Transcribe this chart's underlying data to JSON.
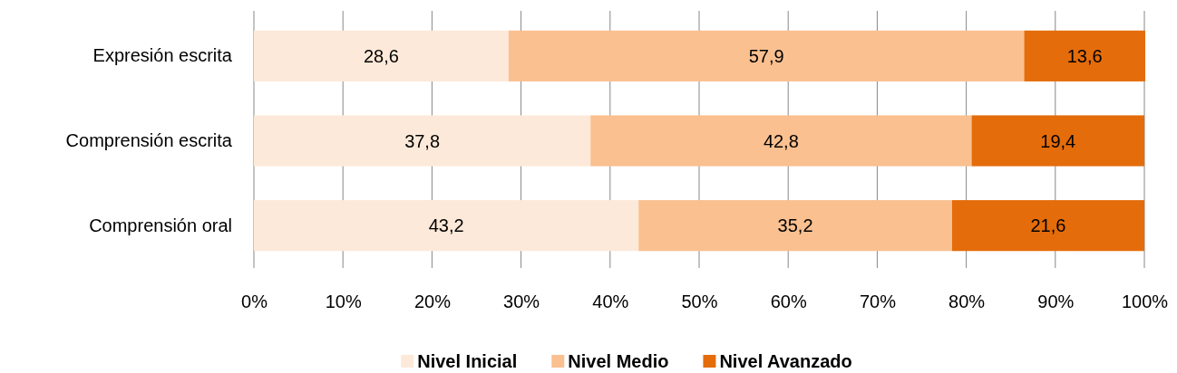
{
  "chart_data": {
    "type": "bar",
    "orientation": "horizontal",
    "stacked": true,
    "categories": [
      "Expresión escrita",
      "Comprensión escrita",
      "Comprensión oral"
    ],
    "series": [
      {
        "name": "Nivel Inicial",
        "color": "#fde9d9",
        "values": [
          28.6,
          37.8,
          43.2
        ],
        "value_labels": [
          "28,6",
          "37,8",
          "43,2"
        ]
      },
      {
        "name": "Nivel Medio",
        "color": "#fac090",
        "values": [
          57.9,
          42.8,
          35.2
        ],
        "value_labels": [
          "57,9",
          "42,8",
          "35,2"
        ]
      },
      {
        "name": "Nivel Avanzado",
        "color": "#e46c0a",
        "values": [
          13.6,
          19.4,
          21.6
        ],
        "value_labels": [
          "13,6",
          "19,4",
          "21,6"
        ]
      }
    ],
    "xlim": [
      0,
      100
    ],
    "xticks": [
      {
        "value": 0,
        "label": "0%"
      },
      {
        "value": 10,
        "label": "10%"
      },
      {
        "value": 20,
        "label": "20%"
      },
      {
        "value": 30,
        "label": "30%"
      },
      {
        "value": 40,
        "label": "40%"
      },
      {
        "value": 50,
        "label": "50%"
      },
      {
        "value": 60,
        "label": "60%"
      },
      {
        "value": 70,
        "label": "70%"
      },
      {
        "value": 80,
        "label": "80%"
      },
      {
        "value": 90,
        "label": "90%"
      },
      {
        "value": 100,
        "label": "100%"
      }
    ],
    "grid": "x",
    "legend": "bottom"
  }
}
